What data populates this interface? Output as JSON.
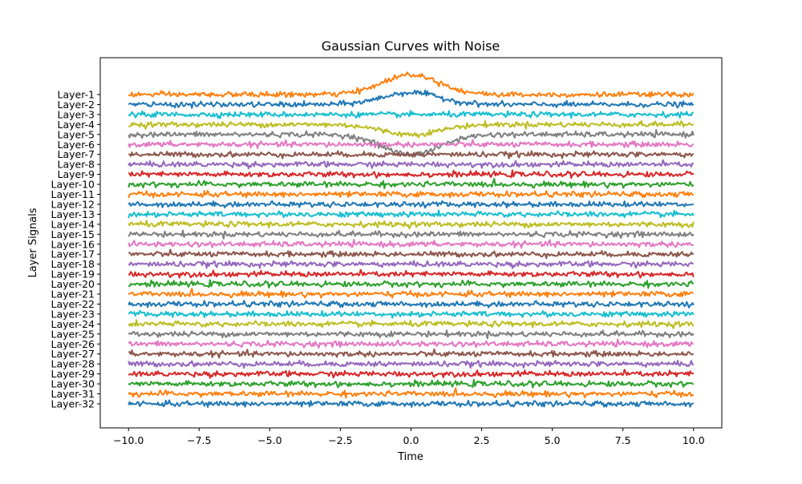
{
  "chart_data": {
    "type": "line",
    "title": "Gaussian Curves with Noise",
    "xlabel": "Time",
    "ylabel": "Layer Signals",
    "xlim": [
      -11.0,
      11.0
    ],
    "x_range": [
      -10.0,
      10.0
    ],
    "x_ticks": [
      -10.0,
      -7.5,
      -5.0,
      -2.5,
      0.0,
      2.5,
      5.0,
      7.5,
      10.0
    ],
    "x_tick_labels": [
      "−10.0",
      "−7.5",
      "−5.0",
      "−2.5",
      "0.0",
      "2.5",
      "5.0",
      "7.5",
      "10.0"
    ],
    "grid": false,
    "legend": "none",
    "gaussian_peak_x": 0.0,
    "series": [
      {
        "name": "Layer-1",
        "color": "#ff7f0e",
        "peak_amplitude": 2.0
      },
      {
        "name": "Layer-2",
        "color": "#1f77b4",
        "peak_amplitude": 1.2
      },
      {
        "name": "Layer-3",
        "color": "#17becf",
        "peak_amplitude": 0.0
      },
      {
        "name": "Layer-4",
        "color": "#bcbd22",
        "peak_amplitude": -1.0
      },
      {
        "name": "Layer-5",
        "color": "#7f7f7f",
        "peak_amplitude": -2.0
      },
      {
        "name": "Layer-6",
        "color": "#e377c2",
        "peak_amplitude": 0.0
      },
      {
        "name": "Layer-7",
        "color": "#8c564b",
        "peak_amplitude": 0.0
      },
      {
        "name": "Layer-8",
        "color": "#9467bd",
        "peak_amplitude": 0.0
      },
      {
        "name": "Layer-9",
        "color": "#d62728",
        "peak_amplitude": 0.0
      },
      {
        "name": "Layer-10",
        "color": "#2ca02c",
        "peak_amplitude": 0.0
      },
      {
        "name": "Layer-11",
        "color": "#ff7f0e",
        "peak_amplitude": 0.0
      },
      {
        "name": "Layer-12",
        "color": "#1f77b4",
        "peak_amplitude": 0.0
      },
      {
        "name": "Layer-13",
        "color": "#17becf",
        "peak_amplitude": 0.0
      },
      {
        "name": "Layer-14",
        "color": "#bcbd22",
        "peak_amplitude": 0.0
      },
      {
        "name": "Layer-15",
        "color": "#7f7f7f",
        "peak_amplitude": 0.0
      },
      {
        "name": "Layer-16",
        "color": "#e377c2",
        "peak_amplitude": 0.0
      },
      {
        "name": "Layer-17",
        "color": "#8c564b",
        "peak_amplitude": 0.0
      },
      {
        "name": "Layer-18",
        "color": "#9467bd",
        "peak_amplitude": 0.0
      },
      {
        "name": "Layer-19",
        "color": "#d62728",
        "peak_amplitude": 0.0
      },
      {
        "name": "Layer-20",
        "color": "#2ca02c",
        "peak_amplitude": 0.0
      },
      {
        "name": "Layer-21",
        "color": "#ff7f0e",
        "peak_amplitude": 0.0
      },
      {
        "name": "Layer-22",
        "color": "#1f77b4",
        "peak_amplitude": 0.0
      },
      {
        "name": "Layer-23",
        "color": "#17becf",
        "peak_amplitude": 0.0
      },
      {
        "name": "Layer-24",
        "color": "#bcbd22",
        "peak_amplitude": 0.0
      },
      {
        "name": "Layer-25",
        "color": "#7f7f7f",
        "peak_amplitude": 0.0
      },
      {
        "name": "Layer-26",
        "color": "#e377c2",
        "peak_amplitude": 0.0
      },
      {
        "name": "Layer-27",
        "color": "#8c564b",
        "peak_amplitude": 0.0
      },
      {
        "name": "Layer-28",
        "color": "#9467bd",
        "peak_amplitude": 0.0
      },
      {
        "name": "Layer-29",
        "color": "#d62728",
        "peak_amplitude": 0.0
      },
      {
        "name": "Layer-30",
        "color": "#2ca02c",
        "peak_amplitude": 0.0
      },
      {
        "name": "Layer-31",
        "color": "#ff7f0e",
        "peak_amplitude": 0.0
      },
      {
        "name": "Layer-32",
        "color": "#1f77b4",
        "peak_amplitude": 0.0
      }
    ]
  }
}
